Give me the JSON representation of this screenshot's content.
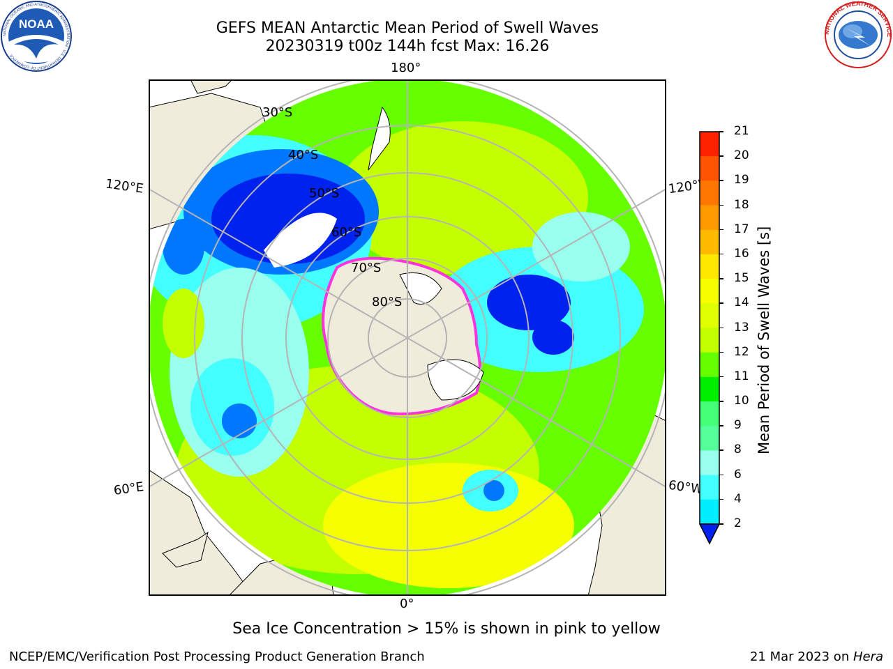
{
  "header": {
    "title_line1": "GEFS MEAN Antarctic Mean Period of Swell Waves",
    "title_line2": "20230319 t00z 144h fcst   Max: 16.26"
  },
  "logos": {
    "left": {
      "name": "noaa-logo",
      "text": "NOAA",
      "ring_text": "NATIONAL OCEANIC AND ATMOSPHERIC ADMINISTRATION · U.S. DEPARTMENT OF COMMERCE"
    },
    "right": {
      "name": "nws-logo",
      "ring_text": "NATIONAL WEATHER SERVICE"
    }
  },
  "map": {
    "projection": "south-polar-stereographic",
    "longitude_labels": {
      "top": "180°",
      "bottom": "0°",
      "left_upper": "120°E",
      "left_lower": "60°E",
      "right_upper": "120°W",
      "right_lower": "60°W"
    },
    "latitude_labels": [
      "30°S",
      "40°S",
      "50°S",
      "60°S",
      "70°S",
      "80°S"
    ],
    "colors": {
      "land": "#efecdb",
      "ice_white": "#ffffff",
      "grid": "#b4b4b4",
      "ice_edge": "#ff55dd"
    }
  },
  "colorbar": {
    "label": "Mean Period of Swell Waves [s]",
    "ticks": [
      "21",
      "20",
      "19",
      "18",
      "17",
      "16",
      "15",
      "14",
      "13",
      "12",
      "11",
      "10",
      "9",
      "8",
      "6",
      "4",
      "2"
    ],
    "colors": [
      "#ff0000",
      "#ff2200",
      "#ff5500",
      "#ff7700",
      "#ff9900",
      "#ffbb00",
      "#ffe800",
      "#f5ff00",
      "#e0ff00",
      "#c4ff00",
      "#66ff00",
      "#00ee00",
      "#44ff77",
      "#55ff99",
      "#99ffee",
      "#44ffff",
      "#00eeff",
      "#0077ff"
    ],
    "extend_color": "#0022ee"
  },
  "legend_note": "Sea Ice Concentration > 15% is shown in pink to yellow",
  "footer": {
    "left": "NCEP/EMC/Verification Post Processing Product Generation Branch",
    "right_date": "21 Mar 2023 on ",
    "right_machine": "Hera"
  }
}
